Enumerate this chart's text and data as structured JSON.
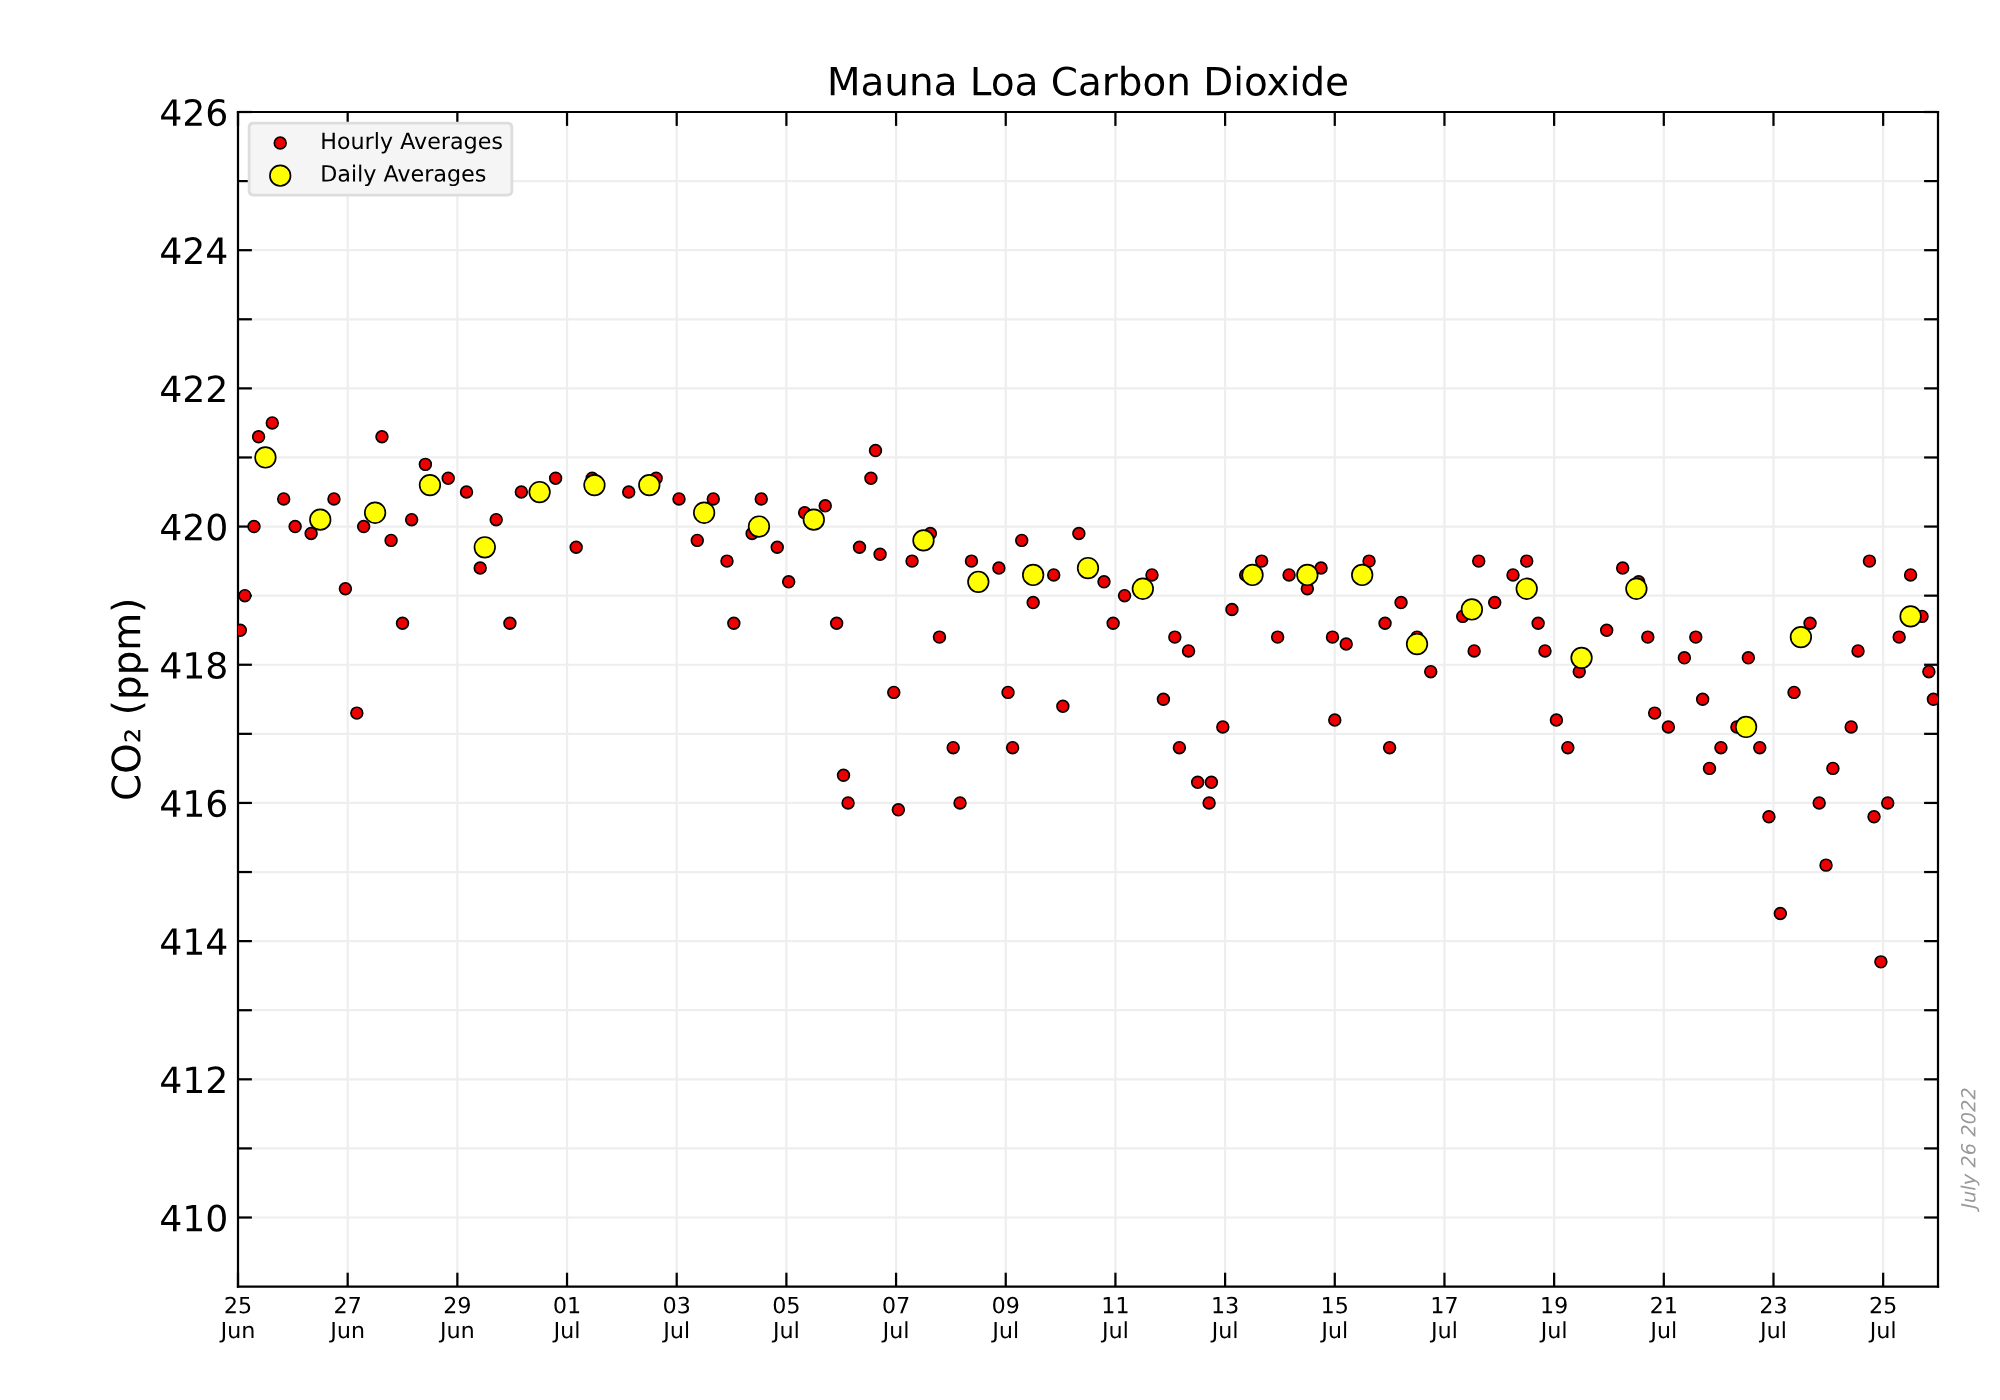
{
  "chart_data": {
    "type": "scatter",
    "title": "Mauna Loa Carbon Dioxide",
    "ylabel": "CO₂ (ppm)",
    "annotations": [
      "July 26 2022"
    ],
    "xlim": [
      "2022-06-25",
      "2022-07-26"
    ],
    "xticks": [
      {
        "value": "2022-06-25",
        "label": "25\nJun"
      },
      {
        "value": "2022-06-27",
        "label": "27\nJun"
      },
      {
        "value": "2022-06-29",
        "label": "29\nJun"
      },
      {
        "value": "2022-07-01",
        "label": "01\nJul"
      },
      {
        "value": "2022-07-03",
        "label": "03\nJul"
      },
      {
        "value": "2022-07-05",
        "label": "05\nJul"
      },
      {
        "value": "2022-07-07",
        "label": "07\nJul"
      },
      {
        "value": "2022-07-09",
        "label": "09\nJul"
      },
      {
        "value": "2022-07-11",
        "label": "11\nJul"
      },
      {
        "value": "2022-07-13",
        "label": "13\nJul"
      },
      {
        "value": "2022-07-15",
        "label": "15\nJul"
      },
      {
        "value": "2022-07-17",
        "label": "17\nJul"
      },
      {
        "value": "2022-07-19",
        "label": "19\nJul"
      },
      {
        "value": "2022-07-21",
        "label": "21\nJul"
      },
      {
        "value": "2022-07-23",
        "label": "23\nJul"
      },
      {
        "value": "2022-07-25",
        "label": "25\nJul"
      }
    ],
    "ylim": [
      409,
      426
    ],
    "yticks": [
      410,
      {
        "value": 411,
        "label": null
      },
      412,
      {
        "value": 413,
        "label": null
      },
      414,
      {
        "value": 415,
        "label": null
      },
      416,
      {
        "value": 417,
        "label": null
      },
      418,
      {
        "value": 419,
        "label": null
      },
      420,
      {
        "value": 421,
        "label": null
      },
      422,
      {
        "value": 423,
        "label": null
      },
      424,
      {
        "value": 425,
        "label": null
      },
      426
    ],
    "grid": true,
    "legend": "top left",
    "marker": "circle",
    "series": [
      {
        "name": "Hourly Averages",
        "color": "#ee0000",
        "x": [
          "2022-06-25T01:00",
          "2022-06-25T03:00",
          "2022-06-25T07:00",
          "2022-06-25T09:00",
          "2022-06-25T15:00",
          "2022-06-25T20:00",
          "2022-06-26T01:00",
          "2022-06-26T08:00",
          "2022-06-26T18:00",
          "2022-06-26T23:00",
          "2022-06-27T04:00",
          "2022-06-27T07:00",
          "2022-06-27T15:00",
          "2022-06-27T19:00",
          "2022-06-28T00:00",
          "2022-06-28T04:00",
          "2022-06-28T10:00",
          "2022-06-28T20:00",
          "2022-06-29T04:00",
          "2022-06-29T10:00",
          "2022-06-29T17:00",
          "2022-06-29T23:00",
          "2022-06-30T04:00",
          "2022-06-30T19:00",
          "2022-07-01T04:00",
          "2022-07-01T11:00",
          "2022-07-02T03:00",
          "2022-07-02T15:00",
          "2022-07-03T01:00",
          "2022-07-03T09:00",
          "2022-07-03T16:00",
          "2022-07-03T22:00",
          "2022-07-04T01:00",
          "2022-07-04T09:00",
          "2022-07-04T13:00",
          "2022-07-04T20:00",
          "2022-07-05T01:00",
          "2022-07-05T08:00",
          "2022-07-05T17:00",
          "2022-07-05T22:00",
          "2022-07-06T01:00",
          "2022-07-06T03:00",
          "2022-07-06T08:00",
          "2022-07-06T13:00",
          "2022-07-06T15:00",
          "2022-07-06T17:00",
          "2022-07-06T23:00",
          "2022-07-07T01:00",
          "2022-07-07T07:00",
          "2022-07-07T15:00",
          "2022-07-07T19:00",
          "2022-07-08T01:00",
          "2022-07-08T04:00",
          "2022-07-08T09:00",
          "2022-07-08T21:00",
          "2022-07-09T01:00",
          "2022-07-09T03:00",
          "2022-07-09T07:00",
          "2022-07-09T12:00",
          "2022-07-09T21:00",
          "2022-07-10T01:00",
          "2022-07-10T08:00",
          "2022-07-10T19:00",
          "2022-07-10T23:00",
          "2022-07-11T04:00",
          "2022-07-11T16:00",
          "2022-07-11T21:00",
          "2022-07-12T02:00",
          "2022-07-12T04:00",
          "2022-07-12T08:00",
          "2022-07-12T12:00",
          "2022-07-12T17:00",
          "2022-07-12T18:00",
          "2022-07-12T23:00",
          "2022-07-13T03:00",
          "2022-07-13T09:00",
          "2022-07-13T16:00",
          "2022-07-13T23:00",
          "2022-07-14T04:00",
          "2022-07-14T12:00",
          "2022-07-14T18:00",
          "2022-07-14T23:00",
          "2022-07-15T00:00",
          "2022-07-15T05:00",
          "2022-07-15T15:00",
          "2022-07-15T22:00",
          "2022-07-16T00:00",
          "2022-07-16T05:00",
          "2022-07-16T12:00",
          "2022-07-16T18:00",
          "2022-07-17T08:00",
          "2022-07-17T13:00",
          "2022-07-17T15:00",
          "2022-07-17T22:00",
          "2022-07-18T06:00",
          "2022-07-18T12:00",
          "2022-07-18T17:00",
          "2022-07-18T20:00",
          "2022-07-19T01:00",
          "2022-07-19T06:00",
          "2022-07-19T11:00",
          "2022-07-19T23:00",
          "2022-07-20T06:00",
          "2022-07-20T13:00",
          "2022-07-20T17:00",
          "2022-07-20T20:00",
          "2022-07-21T02:00",
          "2022-07-21T09:00",
          "2022-07-21T14:00",
          "2022-07-21T17:00",
          "2022-07-21T20:00",
          "2022-07-22T01:00",
          "2022-07-22T08:00",
          "2022-07-22T13:00",
          "2022-07-22T18:00",
          "2022-07-22T22:00",
          "2022-07-23T03:00",
          "2022-07-23T09:00",
          "2022-07-23T16:00",
          "2022-07-23T20:00",
          "2022-07-23T23:00",
          "2022-07-24T02:00",
          "2022-07-24T10:00",
          "2022-07-24T13:00",
          "2022-07-24T18:00",
          "2022-07-24T20:00",
          "2022-07-24T23:00",
          "2022-07-25T02:00",
          "2022-07-25T07:00",
          "2022-07-25T12:00",
          "2022-07-25T17:00",
          "2022-07-25T20:00",
          "2022-07-25T22:00"
        ],
        "values": [
          418.5,
          419.0,
          420.0,
          421.3,
          421.5,
          420.4,
          420.0,
          419.9,
          420.4,
          419.1,
          417.3,
          420.0,
          421.3,
          419.8,
          418.6,
          420.1,
          420.9,
          420.7,
          420.5,
          419.4,
          420.1,
          418.6,
          420.5,
          420.7,
          419.7,
          420.7,
          420.5,
          420.7,
          420.4,
          419.8,
          420.4,
          419.5,
          418.6,
          419.9,
          420.4,
          419.7,
          419.2,
          420.2,
          420.3,
          418.6,
          416.4,
          416.0,
          419.7,
          420.7,
          421.1,
          419.6,
          417.6,
          415.9,
          419.5,
          419.9,
          418.4,
          416.8,
          416.0,
          419.5,
          419.4,
          417.6,
          416.8,
          419.8,
          418.9,
          419.3,
          417.4,
          419.9,
          419.2,
          418.6,
          419.0,
          419.3,
          417.5,
          418.4,
          416.8,
          418.2,
          416.3,
          416.0,
          416.3,
          417.1,
          418.8,
          419.3,
          419.5,
          418.4,
          419.3,
          419.1,
          419.4,
          418.4,
          417.2,
          418.3,
          419.5,
          418.6,
          416.8,
          418.9,
          418.4,
          417.9,
          418.7,
          418.2,
          419.5,
          418.9,
          419.3,
          419.5,
          418.6,
          418.2,
          417.2,
          416.8,
          417.9,
          418.5,
          419.4,
          419.2,
          418.4,
          417.3,
          417.1,
          418.1,
          418.4,
          417.5,
          416.5,
          416.8,
          417.1,
          418.1,
          416.8,
          415.8,
          414.4,
          417.6,
          418.6,
          416.0,
          415.1,
          416.5,
          417.1,
          418.2,
          419.5,
          415.8,
          413.7,
          416.0,
          418.4,
          419.3,
          418.7,
          417.9,
          417.5
        ]
      },
      {
        "name": "Daily Averages",
        "color": "#ffff00",
        "x": [
          "2022-06-25T12:00",
          "2022-06-26T12:00",
          "2022-06-27T12:00",
          "2022-06-28T12:00",
          "2022-06-29T12:00",
          "2022-06-30T12:00",
          "2022-07-01T12:00",
          "2022-07-02T12:00",
          "2022-07-03T12:00",
          "2022-07-04T12:00",
          "2022-07-05T12:00",
          "2022-07-07T12:00",
          "2022-07-08T12:00",
          "2022-07-09T12:00",
          "2022-07-10T12:00",
          "2022-07-11T12:00",
          "2022-07-13T12:00",
          "2022-07-14T12:00",
          "2022-07-15T12:00",
          "2022-07-16T12:00",
          "2022-07-17T12:00",
          "2022-07-18T12:00",
          "2022-07-19T12:00",
          "2022-07-20T12:00",
          "2022-07-22T12:00",
          "2022-07-23T12:00",
          "2022-07-25T12:00"
        ],
        "values": [
          421.0,
          420.1,
          420.2,
          420.6,
          419.7,
          420.5,
          420.6,
          420.6,
          420.2,
          420.0,
          420.1,
          419.8,
          419.2,
          419.3,
          419.4,
          419.1,
          419.3,
          419.3,
          419.3,
          418.3,
          418.8,
          419.1,
          418.1,
          419.1,
          417.1,
          418.4,
          418.7
        ]
      }
    ]
  }
}
